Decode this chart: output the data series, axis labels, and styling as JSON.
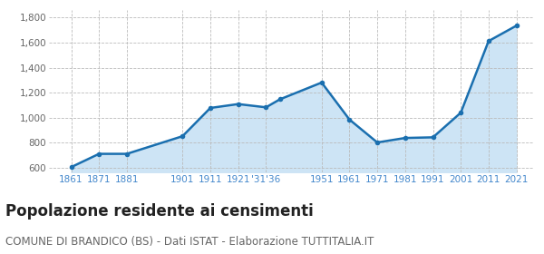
{
  "years": [
    1861,
    1871,
    1881,
    1901,
    1911,
    1921,
    1931,
    1936,
    1951,
    1961,
    1971,
    1981,
    1991,
    2001,
    2011,
    2021
  ],
  "population": [
    605,
    711,
    711,
    852,
    1078,
    1109,
    1083,
    1147,
    1281,
    985,
    802,
    838,
    843,
    1040,
    1613,
    1736
  ],
  "line_color": "#1a6faf",
  "fill_color": "#cde4f5",
  "marker_color": "#1a6faf",
  "grid_color": "#bbbbbb",
  "background_color": "#ffffff",
  "title": "Popolazione residente ai censimenti",
  "subtitle": "COMUNE DI BRANDICO (BS) - Dati ISTAT - Elaborazione TUTTITALIA.IT",
  "ylim": [
    560,
    1860
  ],
  "yticks": [
    600,
    800,
    1000,
    1200,
    1400,
    1600,
    1800
  ],
  "title_fontsize": 12,
  "subtitle_fontsize": 8.5,
  "tick_color": "#4488cc",
  "tick_fontsize": 7.5
}
